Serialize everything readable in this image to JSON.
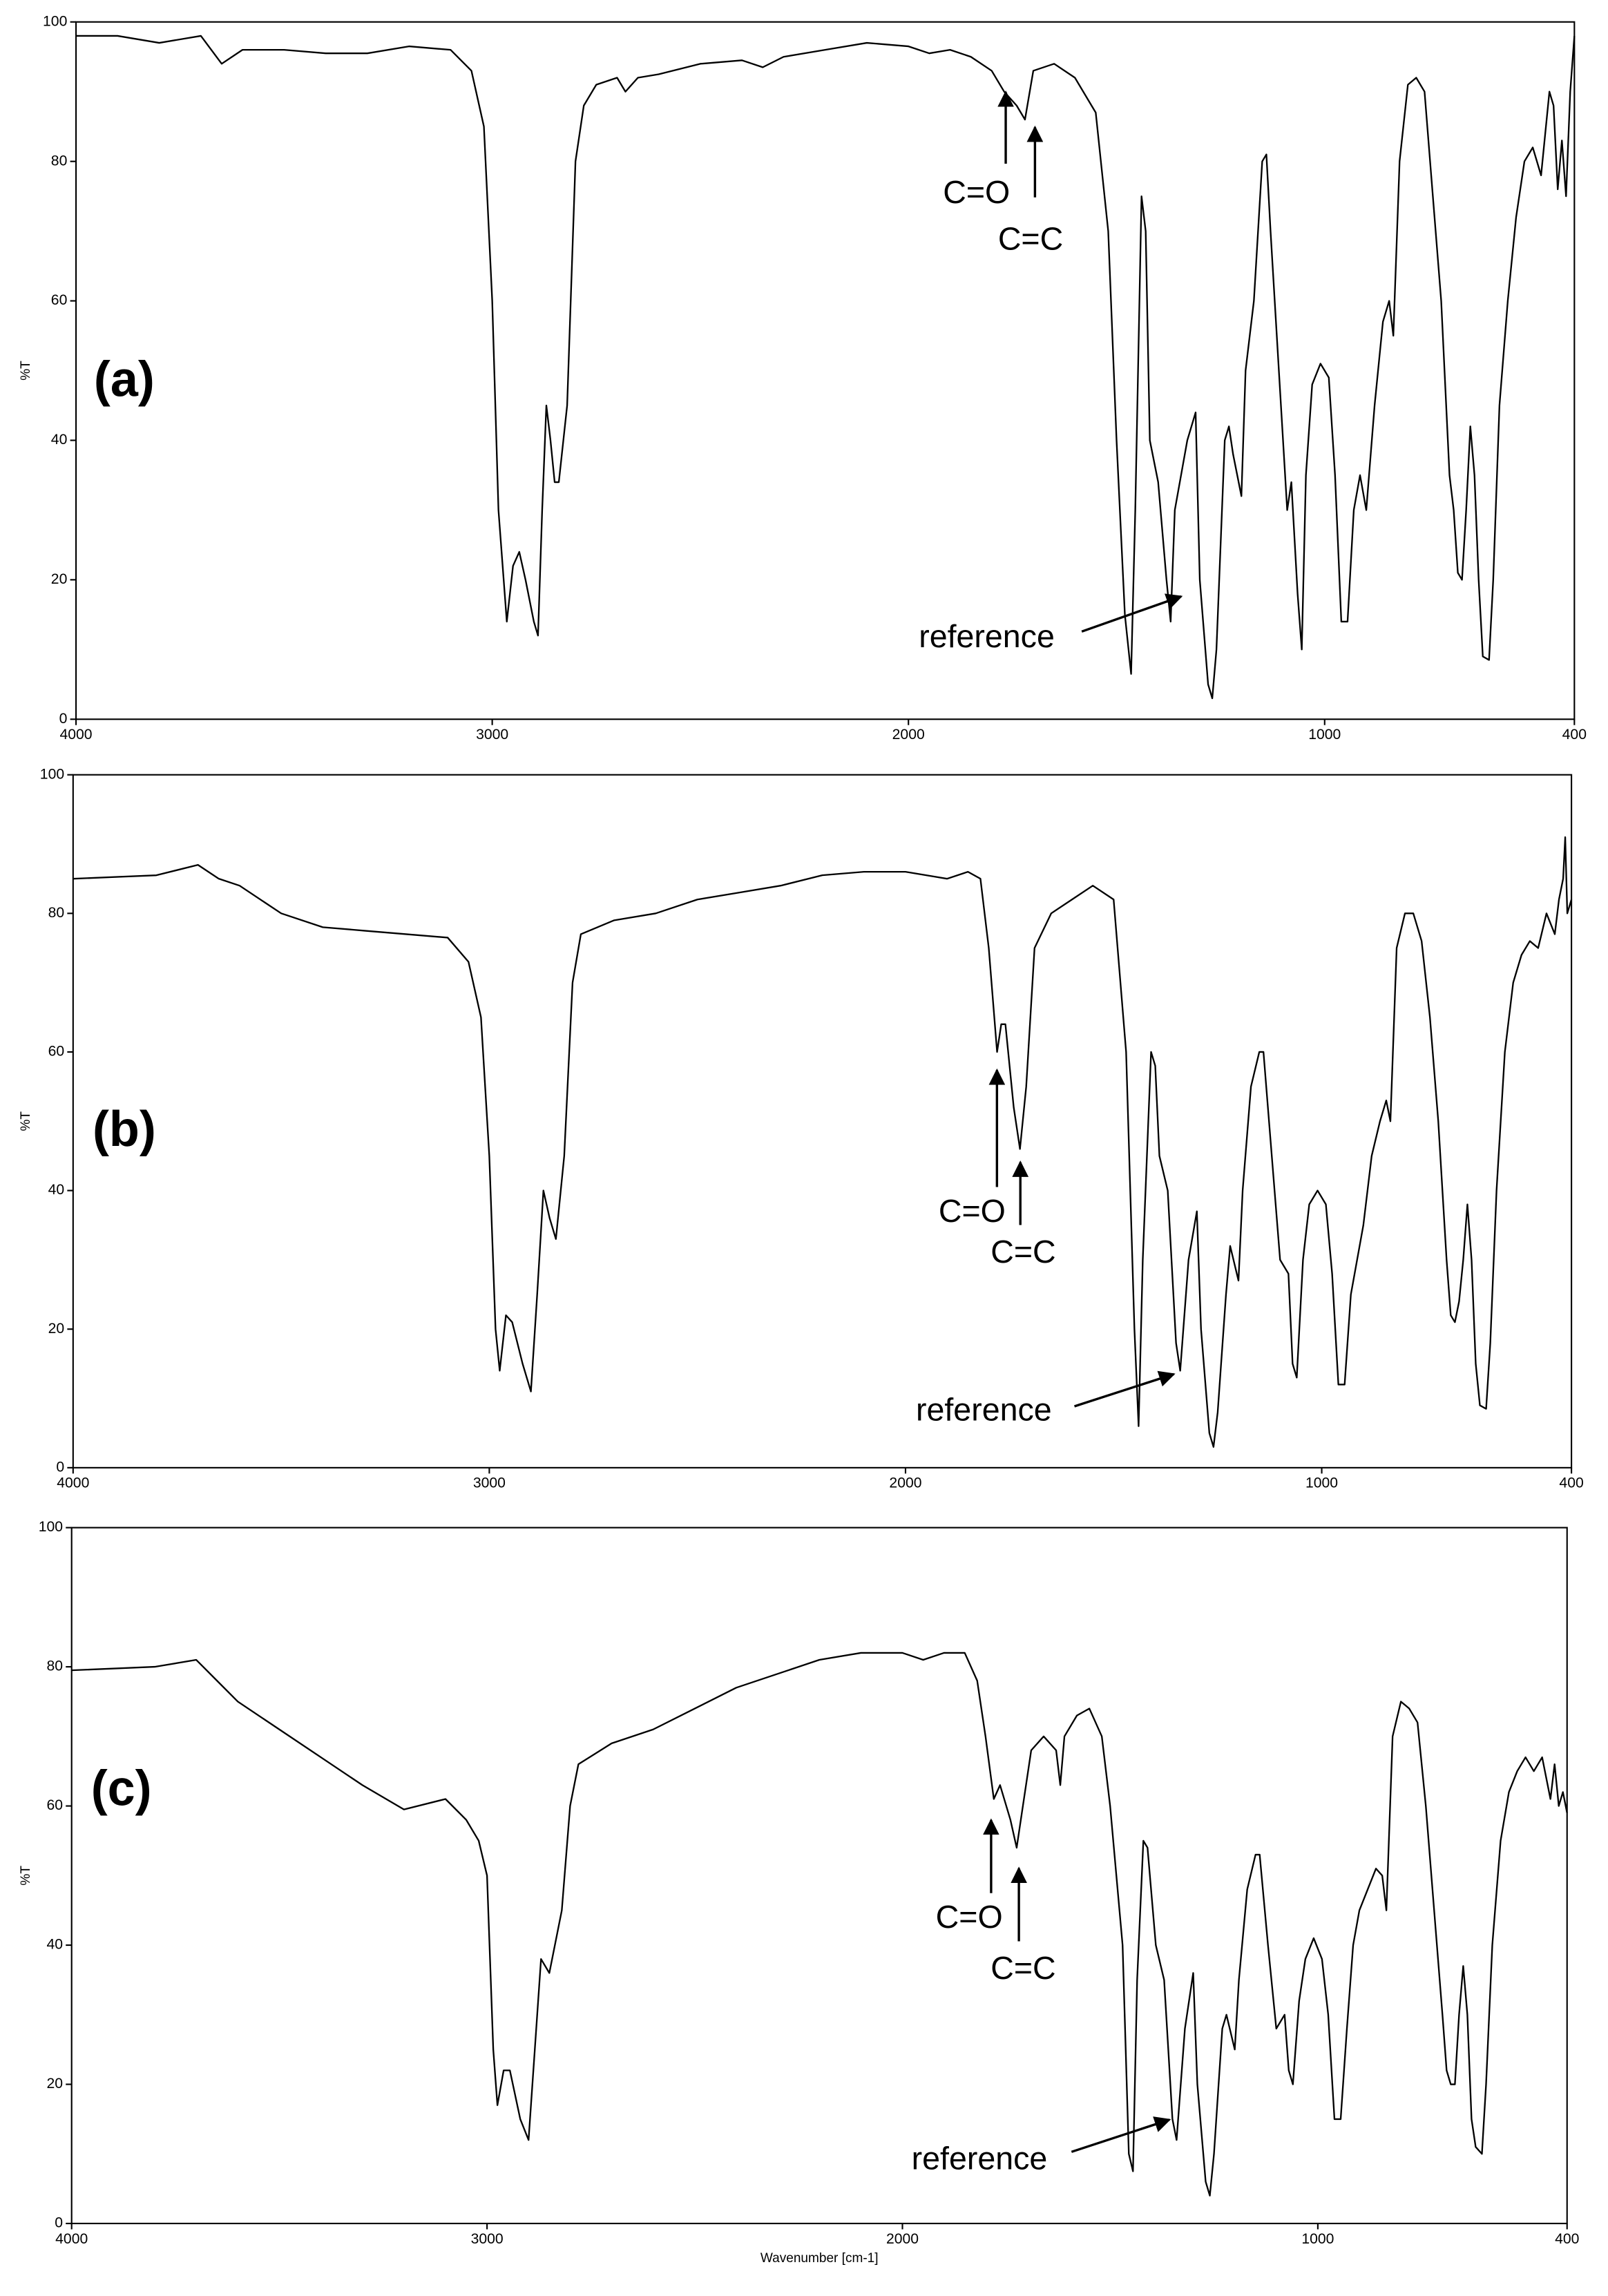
{
  "chart_data": [
    {
      "type": "line",
      "panel_label": "(a)",
      "ylabel": "%T",
      "color": "#000000",
      "annotations": [
        "C=O",
        "C=C",
        "reference"
      ],
      "xlim": [
        4000,
        400
      ],
      "ylim": [
        0,
        100
      ],
      "xticks": [
        4000,
        3000,
        2000,
        1000,
        400
      ],
      "yticks": [
        0,
        20,
        40,
        60,
        80,
        100
      ],
      "x": [
        4000,
        3900,
        3800,
        3700,
        3650,
        3600,
        3500,
        3400,
        3300,
        3200,
        3100,
        3050,
        3020,
        3000,
        2985,
        2965,
        2950,
        2935,
        2920,
        2900,
        2890,
        2880,
        2870,
        2860,
        2850,
        2840,
        2820,
        2800,
        2780,
        2750,
        2700,
        2680,
        2650,
        2600,
        2500,
        2400,
        2350,
        2300,
        2200,
        2100,
        2000,
        1950,
        1900,
        1850,
        1800,
        1770,
        1740,
        1720,
        1700,
        1650,
        1600,
        1550,
        1520,
        1500,
        1480,
        1465,
        1455,
        1440,
        1430,
        1420,
        1400,
        1380,
        1370,
        1360,
        1330,
        1310,
        1300,
        1280,
        1270,
        1260,
        1240,
        1230,
        1220,
        1200,
        1190,
        1170,
        1150,
        1140,
        1130,
        1110,
        1090,
        1080,
        1065,
        1055,
        1045,
        1030,
        1010,
        990,
        975,
        960,
        945,
        930,
        915,
        900,
        880,
        860,
        845,
        835,
        820,
        800,
        780,
        760,
        740,
        720,
        700,
        690,
        680,
        670,
        660,
        650,
        640,
        630,
        620,
        605,
        595,
        580,
        560,
        540,
        520,
        500,
        480,
        470,
        460,
        450,
        440,
        430,
        420,
        410,
        400
      ],
      "values": [
        98,
        98,
        97,
        98,
        94,
        96,
        96,
        95.5,
        95.5,
        96.5,
        96,
        93,
        85,
        60,
        30,
        14,
        22,
        24,
        20,
        14,
        12,
        30,
        45,
        40,
        34,
        34,
        45,
        80,
        88,
        91,
        92,
        90,
        92,
        92.5,
        94,
        94.5,
        93.5,
        95,
        96,
        97,
        96.5,
        95.5,
        96,
        95,
        93,
        90,
        88,
        86,
        93,
        94,
        92,
        87,
        70,
        40,
        15,
        6.5,
        30,
        75,
        70,
        40,
        34,
        20,
        14,
        30,
        40,
        44,
        20,
        5,
        3,
        10,
        40,
        42,
        38,
        32,
        50,
        60,
        80,
        81,
        70,
        50,
        30,
        34,
        18,
        10,
        35,
        48,
        51,
        49,
        35,
        14,
        14,
        30,
        35,
        30,
        45,
        57,
        60,
        55,
        80,
        91,
        92,
        90,
        75,
        60,
        35,
        30,
        21,
        20,
        30,
        42,
        35,
        20,
        9,
        8.5,
        20,
        45,
        60,
        72,
        80,
        82,
        78,
        84,
        90,
        88,
        76,
        83,
        75,
        90,
        98
      ]
    },
    {
      "type": "line",
      "panel_label": "(b)",
      "ylabel": "%T",
      "color": "#000000",
      "annotations": [
        "C=O",
        "C=C",
        "reference"
      ],
      "xlim": [
        4000,
        400
      ],
      "ylim": [
        0,
        100
      ],
      "xticks": [
        4000,
        3000,
        2000,
        1000,
        400
      ],
      "yticks": [
        0,
        20,
        40,
        60,
        80,
        100
      ],
      "x": [
        4000,
        3800,
        3700,
        3650,
        3600,
        3500,
        3400,
        3300,
        3200,
        3100,
        3050,
        3020,
        3000,
        2985,
        2975,
        2960,
        2945,
        2920,
        2900,
        2885,
        2870,
        2855,
        2840,
        2820,
        2800,
        2780,
        2700,
        2600,
        2500,
        2400,
        2300,
        2200,
        2100,
        2000,
        1900,
        1850,
        1820,
        1800,
        1780,
        1770,
        1760,
        1740,
        1725,
        1710,
        1690,
        1650,
        1600,
        1550,
        1500,
        1470,
        1450,
        1440,
        1430,
        1410,
        1400,
        1390,
        1370,
        1350,
        1340,
        1320,
        1300,
        1290,
        1270,
        1260,
        1250,
        1230,
        1220,
        1200,
        1190,
        1170,
        1150,
        1140,
        1120,
        1100,
        1080,
        1070,
        1060,
        1045,
        1030,
        1010,
        990,
        975,
        960,
        945,
        930,
        915,
        900,
        880,
        860,
        845,
        835,
        820,
        800,
        780,
        760,
        740,
        720,
        700,
        690,
        680,
        670,
        660,
        650,
        640,
        630,
        620,
        605,
        595,
        580,
        560,
        540,
        520,
        500,
        480,
        460,
        440,
        430,
        420,
        415,
        410,
        400
      ],
      "values": [
        85,
        85.5,
        87,
        85,
        84,
        80,
        78,
        77.5,
        77,
        76.5,
        73,
        65,
        45,
        20,
        14,
        22,
        21,
        15,
        11,
        25,
        40,
        36,
        33,
        45,
        70,
        77,
        79,
        80,
        82,
        83,
        84,
        85.5,
        86,
        86,
        85,
        86,
        85,
        75,
        60,
        64,
        64,
        52,
        46,
        55,
        75,
        80,
        82,
        84,
        82,
        60,
        20,
        6,
        30,
        60,
        58,
        45,
        40,
        18,
        14,
        30,
        37,
        20,
        5,
        3,
        8,
        25,
        32,
        27,
        40,
        55,
        60,
        60,
        45,
        30,
        28,
        15,
        13,
        30,
        38,
        40,
        38,
        28,
        12,
        12,
        25,
        30,
        35,
        45,
        50,
        53,
        50,
        75,
        80,
        80,
        76,
        65,
        50,
        30,
        22,
        21,
        24,
        30,
        38,
        30,
        15,
        9,
        8.5,
        18,
        40,
        60,
        70,
        74,
        76,
        75,
        80,
        77,
        82,
        85,
        91,
        80,
        82
      ]
    },
    {
      "type": "line",
      "panel_label": "(c)",
      "ylabel": "%T",
      "xlabel": "Wavenumber [cm-1]",
      "color": "#000000",
      "annotations": [
        "C=O",
        "C=C",
        "reference"
      ],
      "xlim": [
        4000,
        400
      ],
      "ylim": [
        0,
        100
      ],
      "xticks": [
        4000,
        3000,
        2000,
        1000,
        400
      ],
      "yticks": [
        0,
        20,
        40,
        60,
        80,
        100
      ],
      "x": [
        4000,
        3800,
        3700,
        3650,
        3600,
        3500,
        3400,
        3300,
        3200,
        3100,
        3050,
        3020,
        3000,
        2985,
        2975,
        2960,
        2945,
        2920,
        2900,
        2885,
        2870,
        2850,
        2820,
        2800,
        2780,
        2700,
        2600,
        2500,
        2400,
        2300,
        2200,
        2100,
        2000,
        1950,
        1900,
        1850,
        1820,
        1800,
        1780,
        1765,
        1740,
        1725,
        1710,
        1690,
        1660,
        1630,
        1620,
        1610,
        1580,
        1550,
        1520,
        1500,
        1470,
        1455,
        1445,
        1435,
        1420,
        1410,
        1390,
        1370,
        1350,
        1340,
        1320,
        1300,
        1290,
        1270,
        1260,
        1250,
        1230,
        1220,
        1200,
        1190,
        1170,
        1150,
        1140,
        1120,
        1100,
        1080,
        1070,
        1060,
        1045,
        1030,
        1010,
        990,
        975,
        960,
        945,
        930,
        915,
        900,
        880,
        860,
        845,
        835,
        820,
        800,
        780,
        760,
        740,
        720,
        700,
        690,
        680,
        670,
        660,
        650,
        640,
        630,
        620,
        605,
        595,
        580,
        560,
        540,
        520,
        500,
        480,
        460,
        440,
        430,
        420,
        410,
        400
      ],
      "values": [
        79.5,
        80,
        81,
        78,
        75,
        71,
        67,
        63,
        59.5,
        61,
        58,
        55,
        50,
        25,
        17,
        22,
        22,
        15,
        12,
        25,
        38,
        36,
        45,
        60,
        66,
        69,
        71,
        74,
        77,
        79,
        81,
        82,
        82,
        81,
        82,
        82,
        78,
        70,
        61,
        63,
        58,
        54,
        60,
        68,
        70,
        68,
        63,
        70,
        73,
        74,
        70,
        60,
        40,
        10,
        7.5,
        35,
        55,
        54,
        40,
        35,
        15,
        12,
        28,
        36,
        20,
        6,
        4,
        10,
        28,
        30,
        25,
        35,
        48,
        53,
        53,
        40,
        28,
        30,
        22,
        20,
        32,
        38,
        41,
        38,
        30,
        15,
        15,
        28,
        40,
        45,
        48,
        51,
        50,
        45,
        70,
        75,
        74,
        72,
        60,
        45,
        30,
        22,
        20,
        20,
        30,
        37,
        30,
        15,
        11,
        10,
        20,
        40,
        55,
        62,
        65,
        67,
        65,
        67,
        61,
        66,
        60,
        62,
        59
      ]
    }
  ]
}
